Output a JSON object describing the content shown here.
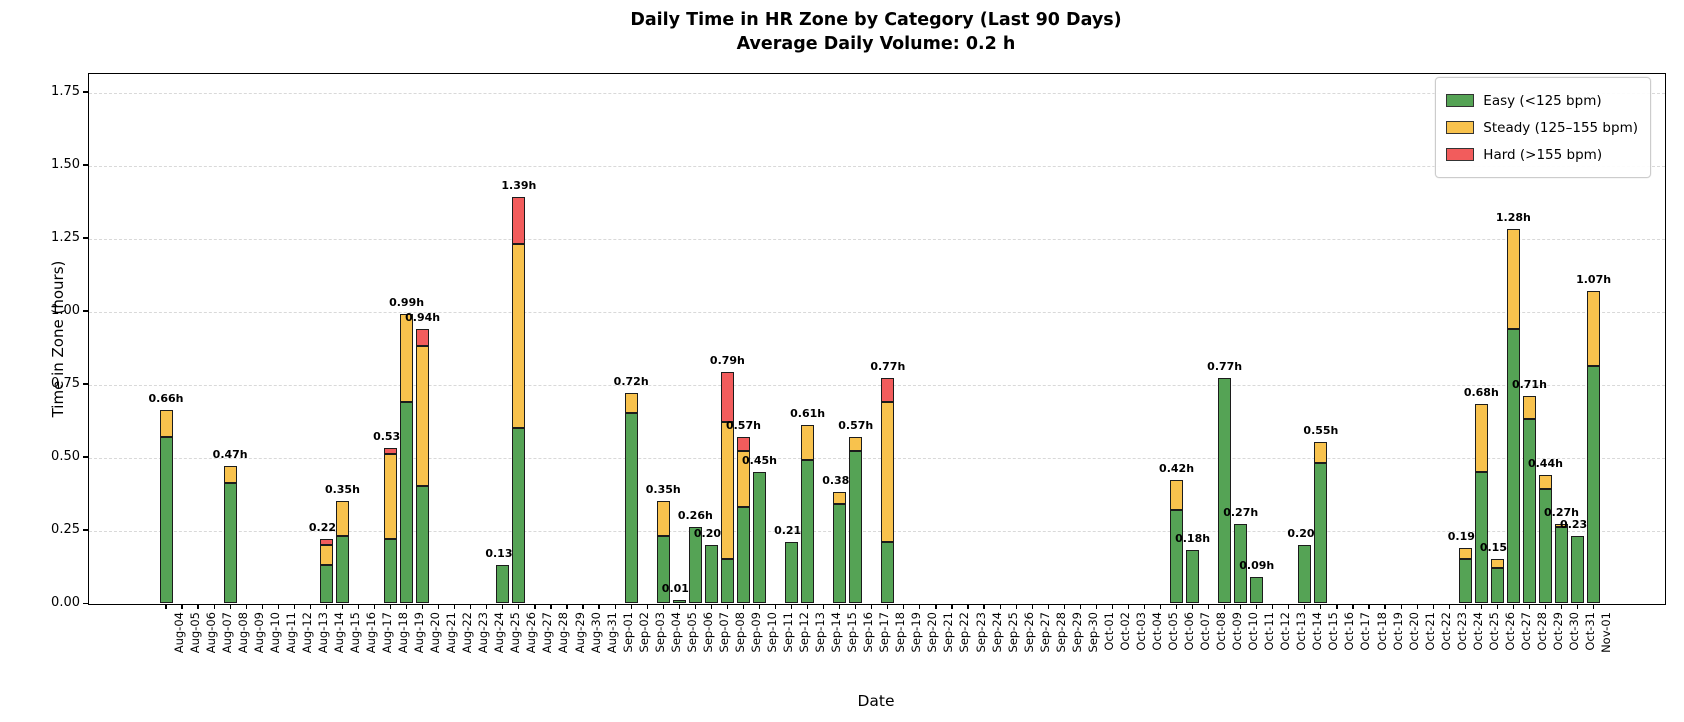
{
  "figure": {
    "title_line1": "Daily Time in HR Zone by Category (Last 90 Days)",
    "title_line2": "Average Daily Volume: 0.2 h",
    "xlabel": "Date",
    "ylabel": "Time in Zone (hours)"
  },
  "legend": {
    "position": "upper-right",
    "items": [
      {
        "label": "Easy (<125 bpm)",
        "color": "#55a355"
      },
      {
        "label": "Steady (125–155 bpm)",
        "color": "#f8c24d"
      },
      {
        "label": "Hard (>155 bpm)",
        "color": "#f25c5c"
      }
    ]
  },
  "chart_data": {
    "type": "bar",
    "stacked": true,
    "title": "Daily Time in HR Zone by Category (Last 90 Days)",
    "subtitle": "Average Daily Volume: 0.2 h",
    "xlabel": "Date",
    "ylabel": "Time in Zone (hours)",
    "ylim": [
      0,
      1.815
    ],
    "yticks": [
      "0.00",
      "0.25",
      "0.50",
      "0.75",
      "1.00",
      "1.25",
      "1.50",
      "1.75"
    ],
    "grid": "horizontal-dashed",
    "bar_edge_color": "#1c1c1c",
    "categories": [
      "Aug-04",
      "Aug-05",
      "Aug-06",
      "Aug-07",
      "Aug-08",
      "Aug-09",
      "Aug-10",
      "Aug-11",
      "Aug-12",
      "Aug-13",
      "Aug-14",
      "Aug-15",
      "Aug-16",
      "Aug-17",
      "Aug-18",
      "Aug-19",
      "Aug-20",
      "Aug-21",
      "Aug-22",
      "Aug-23",
      "Aug-24",
      "Aug-25",
      "Aug-26",
      "Aug-27",
      "Aug-28",
      "Aug-29",
      "Aug-30",
      "Aug-31",
      "Sep-01",
      "Sep-02",
      "Sep-03",
      "Sep-04",
      "Sep-05",
      "Sep-06",
      "Sep-07",
      "Sep-08",
      "Sep-09",
      "Sep-10",
      "Sep-11",
      "Sep-12",
      "Sep-13",
      "Sep-14",
      "Sep-15",
      "Sep-16",
      "Sep-17",
      "Sep-18",
      "Sep-19",
      "Sep-20",
      "Sep-21",
      "Sep-22",
      "Sep-23",
      "Sep-24",
      "Sep-25",
      "Sep-26",
      "Sep-27",
      "Sep-28",
      "Sep-29",
      "Sep-30",
      "Oct-01",
      "Oct-02",
      "Oct-03",
      "Oct-04",
      "Oct-05",
      "Oct-06",
      "Oct-07",
      "Oct-08",
      "Oct-09",
      "Oct-10",
      "Oct-11",
      "Oct-12",
      "Oct-13",
      "Oct-14",
      "Oct-15",
      "Oct-16",
      "Oct-17",
      "Oct-18",
      "Oct-19",
      "Oct-20",
      "Oct-21",
      "Oct-22",
      "Oct-23",
      "Oct-24",
      "Oct-25",
      "Oct-26",
      "Oct-27",
      "Oct-28",
      "Oct-29",
      "Oct-30",
      "Oct-31",
      "Nov-01"
    ],
    "series": [
      {
        "name": "Easy (<125 bpm)",
        "color": "#55a355"
      },
      {
        "name": "Steady (125–155 bpm)",
        "color": "#f8c24d"
      },
      {
        "name": "Hard (>155 bpm)",
        "color": "#f25c5c"
      }
    ],
    "bars": [
      {
        "date": "Aug-04",
        "easy": 0.57,
        "steady": 0.09,
        "hard": 0,
        "label": "0.66h"
      },
      {
        "date": "Aug-08",
        "easy": 0.41,
        "steady": 0.06,
        "hard": 0,
        "label": "0.47h"
      },
      {
        "date": "Aug-14",
        "easy": 0.13,
        "steady": 0.07,
        "hard": 0.02,
        "label": "0.22h"
      },
      {
        "date": "Aug-15",
        "easy": 0.23,
        "steady": 0.12,
        "hard": 0,
        "label": "0.35h"
      },
      {
        "date": "Aug-18",
        "easy": 0.22,
        "steady": 0.29,
        "hard": 0.02,
        "label": "0.53h"
      },
      {
        "date": "Aug-19",
        "easy": 0.69,
        "steady": 0.3,
        "hard": 0,
        "label": "0.99h"
      },
      {
        "date": "Aug-20",
        "easy": 0.4,
        "steady": 0.48,
        "hard": 0.06,
        "label": "0.94h"
      },
      {
        "date": "Aug-25",
        "easy": 0.13,
        "steady": 0,
        "hard": 0,
        "label": "0.13h"
      },
      {
        "date": "Aug-26",
        "easy": 0.6,
        "steady": 0.63,
        "hard": 0.16,
        "label": "1.39h"
      },
      {
        "date": "Sep-02",
        "easy": 0.65,
        "steady": 0.07,
        "hard": 0,
        "label": "0.72h"
      },
      {
        "date": "Sep-04",
        "easy": 0.23,
        "steady": 0.12,
        "hard": 0,
        "label": "0.35h"
      },
      {
        "date": "Sep-05",
        "easy": 0.01,
        "steady": 0,
        "hard": 0,
        "label": "0.01h"
      },
      {
        "date": "Sep-06",
        "easy": 0.26,
        "steady": 0,
        "hard": 0,
        "label": "0.26h"
      },
      {
        "date": "Sep-07",
        "easy": 0.2,
        "steady": 0,
        "hard": 0,
        "label": "0.20h"
      },
      {
        "date": "Sep-08",
        "easy": 0.15,
        "steady": 0.47,
        "hard": 0.17,
        "label": "0.79h"
      },
      {
        "date": "Sep-09",
        "easy": 0.33,
        "steady": 0.19,
        "hard": 0.05,
        "label": "0.57h"
      },
      {
        "date": "Sep-10",
        "easy": 0.45,
        "steady": 0,
        "hard": 0,
        "label": "0.45h"
      },
      {
        "date": "Sep-12",
        "easy": 0.21,
        "steady": 0,
        "hard": 0,
        "label": "0.21h"
      },
      {
        "date": "Sep-13",
        "easy": 0.49,
        "steady": 0.12,
        "hard": 0,
        "label": "0.61h"
      },
      {
        "date": "Sep-15",
        "easy": 0.34,
        "steady": 0.04,
        "hard": 0,
        "label": "0.38h"
      },
      {
        "date": "Sep-16",
        "easy": 0.52,
        "steady": 0.05,
        "hard": 0,
        "label": "0.57h"
      },
      {
        "date": "Sep-18",
        "easy": 0.21,
        "steady": 0.48,
        "hard": 0.08,
        "label": "0.77h"
      },
      {
        "date": "Oct-06",
        "easy": 0.32,
        "steady": 0.1,
        "hard": 0,
        "label": "0.42h"
      },
      {
        "date": "Oct-07",
        "easy": 0.18,
        "steady": 0,
        "hard": 0,
        "label": "0.18h"
      },
      {
        "date": "Oct-09",
        "easy": 0.77,
        "steady": 0,
        "hard": 0,
        "label": "0.77h"
      },
      {
        "date": "Oct-10",
        "easy": 0.27,
        "steady": 0,
        "hard": 0,
        "label": "0.27h"
      },
      {
        "date": "Oct-11",
        "easy": 0.09,
        "steady": 0,
        "hard": 0,
        "label": "0.09h"
      },
      {
        "date": "Oct-14",
        "easy": 0.2,
        "steady": 0,
        "hard": 0,
        "label": "0.20h"
      },
      {
        "date": "Oct-15",
        "easy": 0.48,
        "steady": 0.07,
        "hard": 0,
        "label": "0.55h"
      },
      {
        "date": "Oct-24",
        "easy": 0.15,
        "steady": 0.04,
        "hard": 0,
        "label": "0.19h"
      },
      {
        "date": "Oct-25",
        "easy": 0.45,
        "steady": 0.23,
        "hard": 0,
        "label": "0.68h"
      },
      {
        "date": "Oct-26",
        "easy": 0.12,
        "steady": 0.03,
        "hard": 0,
        "label": "0.15h"
      },
      {
        "date": "Oct-27",
        "easy": 0.94,
        "steady": 0.34,
        "hard": 0,
        "label": "1.28h"
      },
      {
        "date": "Oct-28",
        "easy": 0.63,
        "steady": 0.08,
        "hard": 0,
        "label": "0.71h"
      },
      {
        "date": "Oct-29",
        "easy": 0.39,
        "steady": 0.05,
        "hard": 0,
        "label": "0.44h"
      },
      {
        "date": "Oct-30",
        "easy": 0.26,
        "steady": 0.01,
        "hard": 0,
        "label": "0.27h"
      },
      {
        "date": "Oct-31",
        "easy": 0.23,
        "steady": 0,
        "hard": 0,
        "label": "0.23h"
      },
      {
        "date": "Nov-01",
        "easy": 0.81,
        "steady": 0.26,
        "hard": 0,
        "label": "1.07h"
      }
    ]
  }
}
